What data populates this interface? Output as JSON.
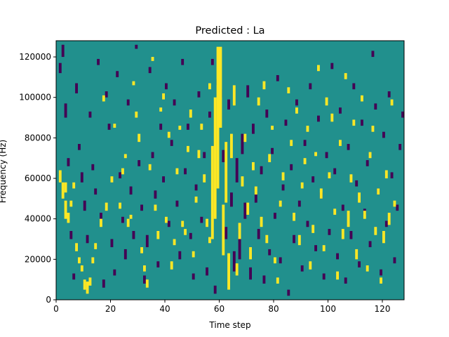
{
  "chart_data": {
    "type": "heatmap",
    "title": "Predicted : La",
    "xlabel": "Time step",
    "ylabel": "Frequency (Hz)",
    "xlim": [
      0,
      128
    ],
    "ylim": [
      0,
      128000
    ],
    "x_ticks": [
      0,
      20,
      40,
      60,
      80,
      100,
      120
    ],
    "y_ticks": [
      0,
      20000,
      40000,
      60000,
      80000,
      100000,
      120000
    ],
    "x_tick_labels": [
      "0",
      "20",
      "40",
      "60",
      "80",
      "100",
      "120"
    ],
    "y_tick_labels": [
      "0",
      "20000",
      "40000",
      "60000",
      "80000",
      "100000",
      "120000"
    ],
    "grid": false,
    "colormap": "viridis",
    "colors": {
      "background": "#21908d",
      "low": "#440154",
      "high": "#fde725"
    },
    "approx_rows": 128,
    "description_of_values": "three-level categorical field (low / mid / high) over time step x frequency bin",
    "high_cells": [
      [
        1,
        58,
        6
      ],
      [
        2,
        50,
        8
      ],
      [
        3,
        53,
        5
      ],
      [
        3,
        40,
        9
      ],
      [
        4,
        38,
        5
      ],
      [
        5,
        46,
        3
      ],
      [
        6,
        55,
        3
      ],
      [
        7,
        24,
        4
      ],
      [
        8,
        18,
        3
      ],
      [
        9,
        14,
        3
      ],
      [
        10,
        5,
        5
      ],
      [
        11,
        3,
        6
      ],
      [
        12,
        7,
        4
      ],
      [
        13,
        18,
        3
      ],
      [
        14,
        25,
        3
      ],
      [
        16,
        36,
        4
      ],
      [
        17,
        98,
        3
      ],
      [
        18,
        44,
        4
      ],
      [
        20,
        58,
        3
      ],
      [
        21,
        85,
        2
      ],
      [
        23,
        45,
        3
      ],
      [
        24,
        62,
        3
      ],
      [
        25,
        70,
        2
      ],
      [
        26,
        36,
        4
      ],
      [
        27,
        40,
        2
      ],
      [
        28,
        106,
        2
      ],
      [
        29,
        90,
        3
      ],
      [
        30,
        78,
        4
      ],
      [
        31,
        23,
        3
      ],
      [
        32,
        14,
        3
      ],
      [
        33,
        6,
        4
      ],
      [
        34,
        64,
        3
      ],
      [
        35,
        118,
        2
      ],
      [
        36,
        44,
        3
      ],
      [
        37,
        30,
        4
      ],
      [
        38,
        93,
        2
      ],
      [
        39,
        99,
        3
      ],
      [
        40,
        38,
        3
      ],
      [
        41,
        80,
        3
      ],
      [
        42,
        15,
        4
      ],
      [
        43,
        27,
        3
      ],
      [
        44,
        62,
        3
      ],
      [
        45,
        84,
        2
      ],
      [
        46,
        36,
        3
      ],
      [
        47,
        32,
        3
      ],
      [
        48,
        73,
        3
      ],
      [
        49,
        90,
        4
      ],
      [
        50,
        21,
        3
      ],
      [
        51,
        48,
        3
      ],
      [
        52,
        70,
        4
      ],
      [
        53,
        84,
        3
      ],
      [
        54,
        58,
        4
      ],
      [
        55,
        36,
        4
      ],
      [
        56,
        28,
        3
      ],
      [
        56,
        104,
        3
      ],
      [
        57,
        30,
        46
      ],
      [
        58,
        40,
        60
      ],
      [
        59,
        55,
        70
      ],
      [
        60,
        85,
        40
      ],
      [
        61,
        22,
        25
      ],
      [
        62,
        48,
        30
      ],
      [
        63,
        5,
        18
      ],
      [
        64,
        70,
        12
      ],
      [
        65,
        96,
        10
      ],
      [
        66,
        12,
        6
      ],
      [
        67,
        30,
        8
      ],
      [
        68,
        56,
        5
      ],
      [
        69,
        78,
        4
      ],
      [
        70,
        42,
        6
      ],
      [
        71,
        20,
        6
      ],
      [
        72,
        64,
        4
      ],
      [
        73,
        52,
        4
      ],
      [
        74,
        96,
        4
      ],
      [
        75,
        36,
        5
      ],
      [
        76,
        104,
        4
      ],
      [
        77,
        28,
        4
      ],
      [
        78,
        68,
        4
      ],
      [
        79,
        84,
        2
      ],
      [
        80,
        18,
        3
      ],
      [
        81,
        8,
        3
      ],
      [
        82,
        46,
        3
      ],
      [
        83,
        59,
        4
      ],
      [
        85,
        102,
        3
      ],
      [
        86,
        76,
        3
      ],
      [
        87,
        39,
        4
      ],
      [
        88,
        92,
        3
      ],
      [
        89,
        27,
        5
      ],
      [
        90,
        55,
        3
      ],
      [
        91,
        67,
        3
      ],
      [
        92,
        83,
        3
      ],
      [
        93,
        15,
        4
      ],
      [
        94,
        33,
        4
      ],
      [
        95,
        71,
        2
      ],
      [
        96,
        113,
        3
      ],
      [
        97,
        50,
        5
      ],
      [
        98,
        24,
        3
      ],
      [
        99,
        96,
        4
      ],
      [
        100,
        60,
        3
      ],
      [
        101,
        88,
        4
      ],
      [
        102,
        42,
        3
      ],
      [
        103,
        10,
        4
      ],
      [
        104,
        76,
        3
      ],
      [
        105,
        30,
        5
      ],
      [
        106,
        109,
        3
      ],
      [
        107,
        36,
        8
      ],
      [
        108,
        58,
        4
      ],
      [
        109,
        86,
        3
      ],
      [
        110,
        20,
        5
      ],
      [
        111,
        48,
        5
      ],
      [
        112,
        98,
        3
      ],
      [
        113,
        40,
        4
      ],
      [
        114,
        14,
        3
      ],
      [
        115,
        70,
        3
      ],
      [
        116,
        83,
        3
      ],
      [
        117,
        32,
        4
      ],
      [
        118,
        52,
        3
      ],
      [
        119,
        8,
        3
      ],
      [
        120,
        28,
        6
      ],
      [
        121,
        60,
        4
      ],
      [
        122,
        37,
        6
      ],
      [
        123,
        96,
        3
      ],
      [
        124,
        46,
        3
      ]
    ],
    "low_cells": [
      [
        1,
        112,
        5
      ],
      [
        2,
        120,
        6
      ],
      [
        3,
        90,
        7
      ],
      [
        4,
        66,
        4
      ],
      [
        5,
        30,
        4
      ],
      [
        6,
        10,
        3
      ],
      [
        7,
        102,
        5
      ],
      [
        8,
        74,
        3
      ],
      [
        9,
        58,
        5
      ],
      [
        10,
        44,
        5
      ],
      [
        11,
        28,
        4
      ],
      [
        12,
        90,
        3
      ],
      [
        13,
        64,
        3
      ],
      [
        14,
        52,
        3
      ],
      [
        15,
        116,
        3
      ],
      [
        16,
        40,
        3
      ],
      [
        17,
        6,
        4
      ],
      [
        18,
        100,
        3
      ],
      [
        19,
        84,
        3
      ],
      [
        20,
        26,
        4
      ],
      [
        21,
        12,
        3
      ],
      [
        22,
        110,
        3
      ],
      [
        23,
        60,
        3
      ],
      [
        24,
        38,
        3
      ],
      [
        25,
        20,
        5
      ],
      [
        26,
        96,
        3
      ],
      [
        27,
        52,
        4
      ],
      [
        28,
        30,
        4
      ],
      [
        29,
        124,
        2
      ],
      [
        30,
        66,
        3
      ],
      [
        31,
        44,
        3
      ],
      [
        32,
        8,
        4
      ],
      [
        33,
        26,
        6
      ],
      [
        34,
        112,
        3
      ],
      [
        35,
        70,
        3
      ],
      [
        36,
        50,
        4
      ],
      [
        37,
        16,
        3
      ],
      [
        38,
        84,
        3
      ],
      [
        39,
        58,
        3
      ],
      [
        40,
        104,
        3
      ],
      [
        41,
        36,
        3
      ],
      [
        42,
        76,
        3
      ],
      [
        43,
        96,
        3
      ],
      [
        44,
        46,
        3
      ],
      [
        45,
        20,
        4
      ],
      [
        46,
        116,
        3
      ],
      [
        47,
        62,
        3
      ],
      [
        48,
        84,
        3
      ],
      [
        49,
        30,
        3
      ],
      [
        50,
        10,
        3
      ],
      [
        51,
        54,
        3
      ],
      [
        52,
        100,
        3
      ],
      [
        53,
        38,
        3
      ],
      [
        54,
        70,
        3
      ],
      [
        55,
        12,
        4
      ],
      [
        56,
        90,
        3
      ],
      [
        57,
        116,
        3
      ],
      [
        58,
        3,
        4
      ],
      [
        59,
        106,
        3
      ],
      [
        60,
        100,
        4
      ],
      [
        61,
        68,
        6
      ],
      [
        62,
        30,
        6
      ],
      [
        63,
        94,
        5
      ],
      [
        64,
        46,
        7
      ],
      [
        65,
        14,
        10
      ],
      [
        66,
        58,
        12
      ],
      [
        67,
        20,
        15
      ],
      [
        68,
        72,
        10
      ],
      [
        69,
        40,
        8
      ],
      [
        70,
        100,
        6
      ],
      [
        71,
        10,
        6
      ],
      [
        72,
        82,
        5
      ],
      [
        73,
        48,
        5
      ],
      [
        74,
        30,
        5
      ],
      [
        75,
        62,
        4
      ],
      [
        76,
        8,
        4
      ],
      [
        77,
        90,
        4
      ],
      [
        78,
        22,
        3
      ],
      [
        79,
        72,
        3
      ],
      [
        80,
        40,
        3
      ],
      [
        81,
        108,
        3
      ],
      [
        82,
        18,
        3
      ],
      [
        83,
        54,
        3
      ],
      [
        84,
        86,
        3
      ],
      [
        85,
        2,
        3
      ],
      [
        86,
        64,
        3
      ],
      [
        87,
        28,
        4
      ],
      [
        88,
        96,
        3
      ],
      [
        89,
        46,
        3
      ],
      [
        90,
        14,
        3
      ],
      [
        91,
        76,
        3
      ],
      [
        92,
        36,
        3
      ],
      [
        93,
        104,
        3
      ],
      [
        94,
        58,
        3
      ],
      [
        95,
        24,
        3
      ],
      [
        96,
        88,
        3
      ],
      [
        97,
        50,
        3
      ],
      [
        98,
        10,
        3
      ],
      [
        99,
        70,
        3
      ],
      [
        100,
        32,
        3
      ],
      [
        101,
        114,
        3
      ],
      [
        102,
        62,
        3
      ],
      [
        103,
        20,
        3
      ],
      [
        104,
        92,
        3
      ],
      [
        105,
        44,
        3
      ],
      [
        106,
        8,
        3
      ],
      [
        107,
        74,
        3
      ],
      [
        108,
        30,
        4
      ],
      [
        109,
        104,
        3
      ],
      [
        110,
        56,
        3
      ],
      [
        111,
        16,
        3
      ],
      [
        112,
        86,
        3
      ],
      [
        113,
        42,
        3
      ],
      [
        114,
        66,
        3
      ],
      [
        115,
        26,
        3
      ],
      [
        116,
        120,
        3
      ],
      [
        117,
        94,
        3
      ],
      [
        118,
        52,
        3
      ],
      [
        119,
        12,
        3
      ],
      [
        120,
        80,
        3
      ],
      [
        121,
        36,
        3
      ],
      [
        122,
        100,
        3
      ],
      [
        123,
        60,
        3
      ],
      [
        124,
        18,
        3
      ],
      [
        125,
        44,
        3
      ],
      [
        126,
        74,
        3
      ],
      [
        127,
        90,
        3
      ]
    ]
  }
}
